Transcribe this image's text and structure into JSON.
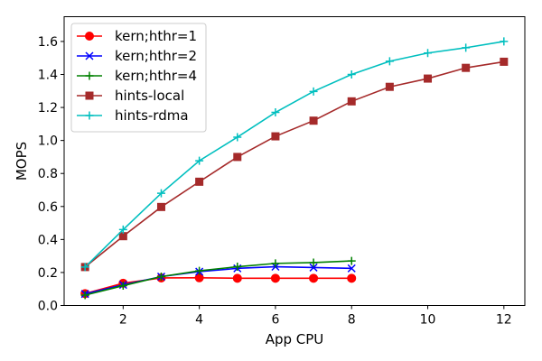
{
  "chart_data": {
    "type": "line",
    "xlabel": "App CPU",
    "ylabel": "MOPS",
    "xlim": [
      0.45,
      12.55
    ],
    "ylim": [
      0.0,
      1.75
    ],
    "xticks": [
      2,
      4,
      6,
      8,
      10,
      12
    ],
    "yticks": [
      0.0,
      0.2,
      0.4,
      0.6,
      0.8,
      1.0,
      1.2,
      1.4,
      1.6
    ],
    "xtick_labels": [
      "2",
      "4",
      "6",
      "8",
      "10",
      "12"
    ],
    "ytick_labels": [
      "0.0",
      "0.2",
      "0.4",
      "0.6",
      "0.8",
      "1.0",
      "1.2",
      "1.4",
      "1.6"
    ],
    "grid": false,
    "legend_position": "top-left",
    "series": [
      {
        "name": "kern;hthr=1",
        "color": "#ff0000",
        "marker": "circle",
        "x": [
          1,
          2,
          3,
          4,
          5,
          6,
          7,
          8
        ],
        "y": [
          0.072,
          0.135,
          0.167,
          0.168,
          0.165,
          0.165,
          0.165,
          0.165
        ]
      },
      {
        "name": "kern;hthr=2",
        "color": "#0000ff",
        "marker": "x",
        "x": [
          1,
          2,
          3,
          4,
          5,
          6,
          7,
          8
        ],
        "y": [
          0.07,
          0.125,
          0.175,
          0.205,
          0.225,
          0.235,
          0.23,
          0.225
        ]
      },
      {
        "name": "kern;hthr=4",
        "color": "#008000",
        "marker": "plus",
        "x": [
          1,
          2,
          3,
          4,
          5,
          6,
          7,
          8
        ],
        "y": [
          0.063,
          0.12,
          0.175,
          0.21,
          0.235,
          0.255,
          0.26,
          0.27
        ]
      },
      {
        "name": "hints-local",
        "color": "#a52a2a",
        "marker": "square",
        "x": [
          1,
          2,
          3,
          4,
          5,
          6,
          7,
          8,
          9,
          10,
          11,
          12
        ],
        "y": [
          0.233,
          0.42,
          0.597,
          0.75,
          0.9,
          1.025,
          1.12,
          1.237,
          1.325,
          1.375,
          1.44,
          1.477
        ]
      },
      {
        "name": "hints-rdma",
        "color": "#00bfbf",
        "marker": "plus",
        "x": [
          1,
          2,
          3,
          4,
          5,
          6,
          7,
          8,
          9,
          10,
          11,
          12
        ],
        "y": [
          0.233,
          0.46,
          0.68,
          0.877,
          1.02,
          1.17,
          1.297,
          1.4,
          1.48,
          1.53,
          1.562,
          1.6
        ]
      }
    ]
  }
}
